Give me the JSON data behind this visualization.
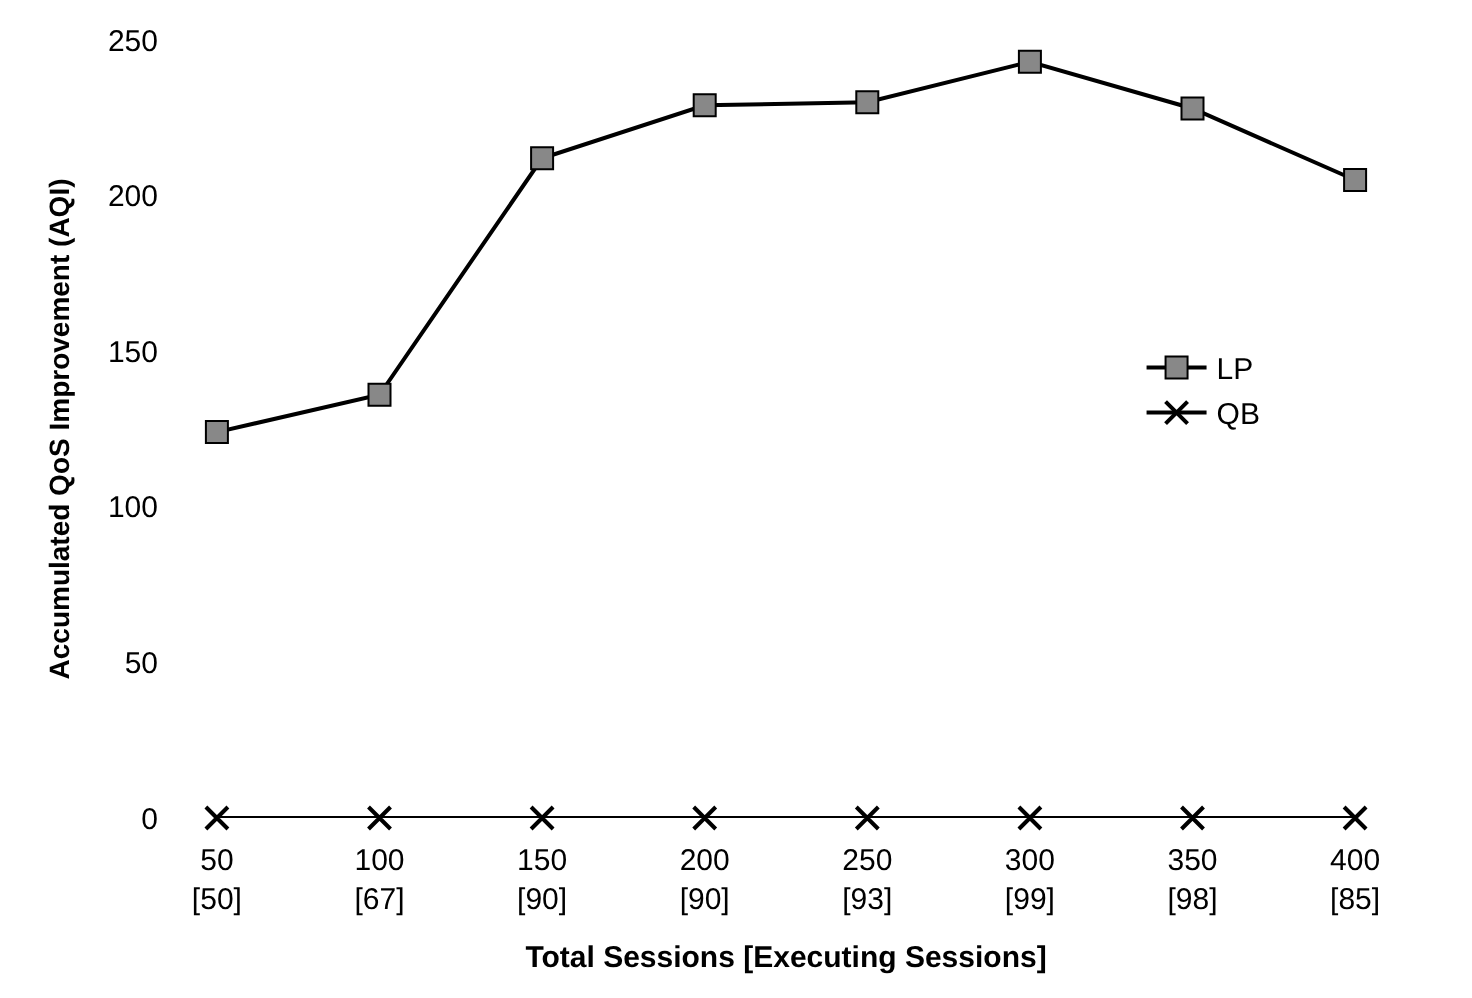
{
  "chart_data": {
    "type": "line",
    "xlabel": "Total Sessions [Executing Sessions]",
    "ylabel": "Accumulated QoS Improvement (AQI)",
    "categories": [
      "50\n[50]",
      "100\n[67]",
      "150\n[90]",
      "200\n[90]",
      "250\n[93]",
      "300\n[99]",
      "350\n[98]",
      "400\n[85]"
    ],
    "series": [
      {
        "name": "LP",
        "color": "#000000",
        "marker": "square",
        "values": [
          124,
          136,
          212,
          229,
          230,
          243,
          228,
          205
        ]
      },
      {
        "name": "QB",
        "color": "#000000",
        "marker": "cross",
        "values": [
          0,
          0,
          0,
          0,
          0,
          0,
          0,
          0
        ]
      }
    ],
    "ylim": [
      0,
      250
    ],
    "yticks": [
      0,
      50,
      100,
      150,
      200,
      250
    ],
    "legend": "right",
    "line_style": "solid"
  }
}
